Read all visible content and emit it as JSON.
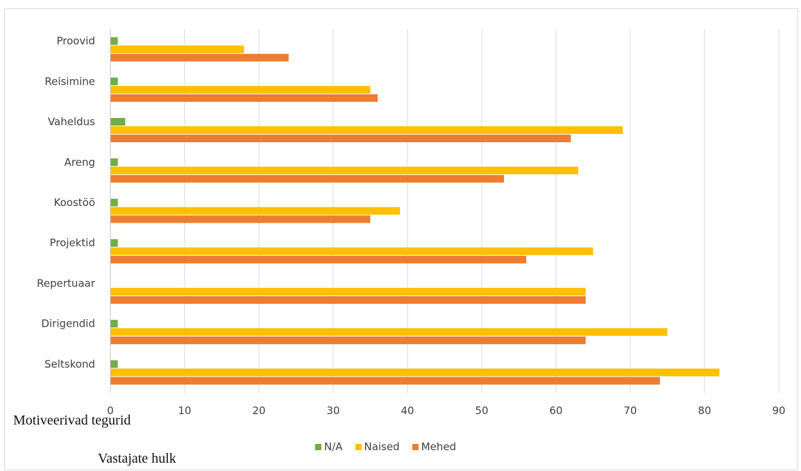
{
  "chart_data": {
    "type": "bar",
    "orientation": "horizontal",
    "categories": [
      "Proovid",
      "Reisimine",
      "Vaheldus",
      "Areng",
      "Koostöö",
      "Projektid",
      "Repertuaar",
      "Dirigendid",
      "Seltskond"
    ],
    "series": [
      {
        "name": "N/A",
        "color": "#70ad47",
        "values": [
          1,
          1,
          2,
          1,
          1,
          1,
          0,
          1,
          1
        ]
      },
      {
        "name": "Naised",
        "color": "#ffc000",
        "values": [
          18,
          35,
          69,
          63,
          39,
          65,
          64,
          75,
          82
        ]
      },
      {
        "name": "Mehed",
        "color": "#ed7d31",
        "values": [
          24,
          36,
          62,
          53,
          35,
          56,
          64,
          64,
          74
        ]
      }
    ],
    "xlim": [
      0,
      90
    ],
    "xticks": [
      "0",
      "10",
      "20",
      "30",
      "40",
      "50",
      "60",
      "70",
      "80",
      "90"
    ],
    "grid": true,
    "legend_position": "bottom",
    "xlabel": "Motiveerivad tegurid",
    "ylabel": "Vastajate hulk"
  }
}
